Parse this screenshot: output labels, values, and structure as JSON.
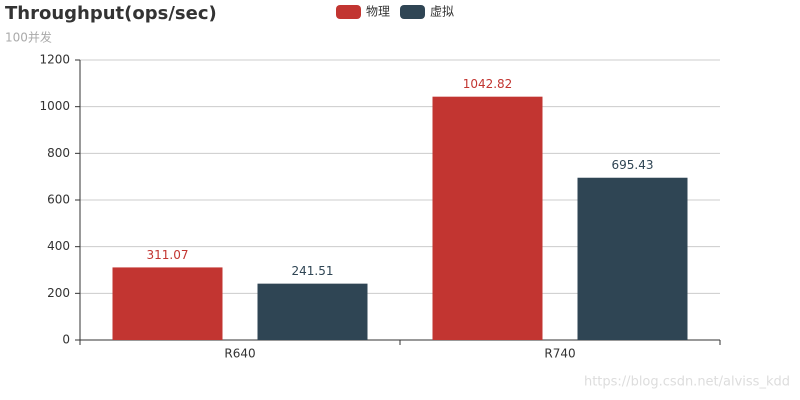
{
  "chart_data": {
    "type": "bar",
    "title": "Throughput(ops/sec)",
    "subtitle": "100并发",
    "categories": [
      "R640",
      "R740"
    ],
    "series": [
      {
        "name": "物理",
        "color": "#c23531",
        "values": [
          311.07,
          1042.82
        ]
      },
      {
        "name": "虚拟",
        "color": "#2f4554",
        "values": [
          241.51,
          695.43
        ]
      }
    ],
    "ylim": [
      0,
      1200
    ],
    "yticks": [
      0,
      200,
      400,
      600,
      800,
      1000,
      1200
    ],
    "grid": true,
    "legend_position": "top",
    "watermark": "https://blog.csdn.net/alviss_kdd"
  }
}
